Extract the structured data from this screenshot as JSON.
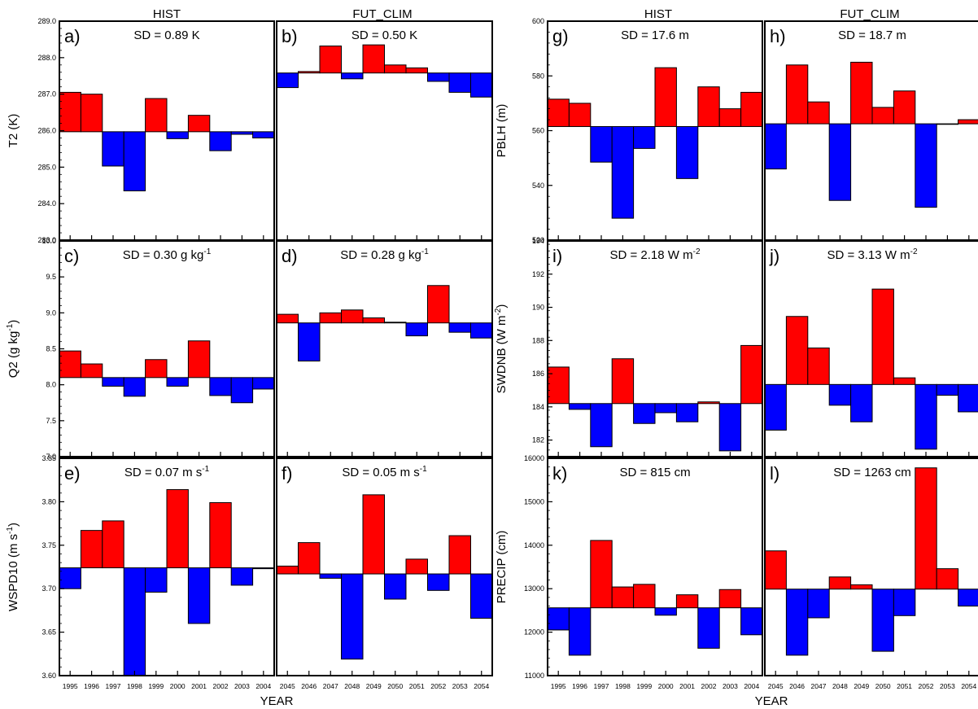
{
  "column_headers": [
    "HIST",
    "FUT_CLIM",
    "HIST",
    "FUT_CLIM"
  ],
  "xlabel": "YEAR",
  "colors": {
    "positive": "#ff0000",
    "negative": "#0000ff",
    "frame": "#000000"
  },
  "chart_data": [
    {
      "type": "bar",
      "panel": "a)",
      "sd_main": "SD = 0.89 K",
      "sd_sup": "",
      "ylabel_main": "T2 (K)",
      "ylabel_sup": "",
      "categories": [
        "1995",
        "1996",
        "1997",
        "1998",
        "1999",
        "2000",
        "2001",
        "2002",
        "2003",
        "2004"
      ],
      "baseline": 285.97,
      "values": [
        287.05,
        287.0,
        285.03,
        284.35,
        286.88,
        285.78,
        286.42,
        285.45,
        285.9,
        285.8
      ],
      "ylim": [
        283.0,
        289.0
      ],
      "yticks": [
        283.0,
        284.0,
        285.0,
        286.0,
        287.0,
        288.0,
        289.0
      ],
      "ytick_labels": [
        "283.0",
        "284.0",
        "285.0",
        "286.0",
        "287.0",
        "288.0",
        "289.0"
      ],
      "show_xticks": false
    },
    {
      "type": "bar",
      "panel": "b)",
      "sd_main": "SD = 0.50 K",
      "sd_sup": "",
      "ylabel_main": "",
      "ylabel_sup": "",
      "categories": [
        "2045",
        "2046",
        "2047",
        "2048",
        "2049",
        "2050",
        "2051",
        "2052",
        "2053",
        "2054"
      ],
      "baseline": 287.58,
      "values": [
        287.18,
        287.62,
        288.32,
        287.42,
        288.35,
        287.8,
        287.72,
        287.35,
        287.05,
        286.92
      ],
      "ylim": [
        283.0,
        289.0
      ],
      "yticks": [],
      "ytick_labels": [],
      "show_xticks": false
    },
    {
      "type": "bar",
      "panel": "c)",
      "sd_main": "SD = 0.30 g kg",
      "sd_sup": "-1",
      "ylabel_main": "Q2 (g kg",
      "ylabel_sup": "-1",
      "categories": [
        "1995",
        "1996",
        "1997",
        "1998",
        "1999",
        "2000",
        "2001",
        "2002",
        "2003",
        "2004"
      ],
      "baseline": 8.1,
      "values": [
        8.47,
        8.29,
        7.98,
        7.84,
        8.35,
        7.98,
        8.61,
        7.85,
        7.75,
        7.94
      ],
      "ylim": [
        7.0,
        10.0
      ],
      "yticks": [
        7.0,
        7.5,
        8.0,
        8.5,
        9.0,
        9.5,
        10.0
      ],
      "ytick_labels": [
        "7.0",
        "7.5",
        "8.0",
        "8.5",
        "9.0",
        "9.5",
        "10.0"
      ],
      "show_xticks": false
    },
    {
      "type": "bar",
      "panel": "d)",
      "sd_main": "SD = 0.28 g kg",
      "sd_sup": "-1",
      "ylabel_main": "",
      "ylabel_sup": "",
      "categories": [
        "2045",
        "2046",
        "2047",
        "2048",
        "2049",
        "2050",
        "2051",
        "2052",
        "2053",
        "2054"
      ],
      "baseline": 8.86,
      "values": [
        8.98,
        8.33,
        9.0,
        9.04,
        8.93,
        8.87,
        8.68,
        9.38,
        8.73,
        8.65
      ],
      "ylim": [
        7.0,
        10.0
      ],
      "yticks": [],
      "ytick_labels": [],
      "show_xticks": false
    },
    {
      "type": "bar",
      "panel": "e)",
      "sd_main": "SD = 0.07 m s",
      "sd_sup": "-1",
      "ylabel_main": "WSPD10 (m s",
      "ylabel_sup": "-1",
      "categories": [
        "1995",
        "1996",
        "1997",
        "1998",
        "1999",
        "2000",
        "2001",
        "2002",
        "2003",
        "2004"
      ],
      "baseline": 3.724,
      "values": [
        3.7,
        3.767,
        3.778,
        3.6,
        3.696,
        3.814,
        3.66,
        3.799,
        3.704,
        3.723
      ],
      "ylim": [
        3.6,
        3.85
      ],
      "yticks": [
        3.6,
        3.65,
        3.7,
        3.75,
        3.8,
        3.85
      ],
      "ytick_labels": [
        "3.60",
        "3.65",
        "3.70",
        "3.75",
        "3.80",
        "3.85"
      ],
      "show_xticks": true
    },
    {
      "type": "bar",
      "panel": "f)",
      "sd_main": "SD = 0.05 m s",
      "sd_sup": "-1",
      "ylabel_main": "",
      "ylabel_sup": "",
      "categories": [
        "2045",
        "2046",
        "2047",
        "2048",
        "2049",
        "2050",
        "2051",
        "2052",
        "2053",
        "2054"
      ],
      "baseline": 3.717,
      "values": [
        3.726,
        3.753,
        3.712,
        3.619,
        3.808,
        3.688,
        3.734,
        3.698,
        3.761,
        3.666
      ],
      "ylim": [
        3.6,
        3.85
      ],
      "yticks": [],
      "ytick_labels": [],
      "show_xticks": true
    },
    {
      "type": "bar",
      "panel": "g)",
      "sd_main": "SD = 17.6 m",
      "sd_sup": "",
      "ylabel_main": "PBLH (m)",
      "ylabel_sup": "",
      "categories": [
        "1995",
        "1996",
        "1997",
        "1998",
        "1999",
        "2000",
        "2001",
        "2002",
        "2003",
        "2004"
      ],
      "baseline": 561.5,
      "values": [
        571.5,
        570.0,
        548.5,
        528.0,
        553.5,
        583.0,
        542.5,
        576.0,
        568.0,
        574.0
      ],
      "ylim": [
        520,
        600
      ],
      "yticks": [
        520,
        540,
        560,
        580,
        600
      ],
      "ytick_labels": [
        "520",
        "540",
        "560",
        "580",
        "600"
      ],
      "show_xticks": false
    },
    {
      "type": "bar",
      "panel": "h)",
      "sd_main": "SD = 18.7 m",
      "sd_sup": "",
      "ylabel_main": "",
      "ylabel_sup": "",
      "categories": [
        "2045",
        "2046",
        "2047",
        "2048",
        "2049",
        "2050",
        "2051",
        "2052",
        "2053",
        "2054"
      ],
      "baseline": 562.5,
      "values": [
        546.0,
        584.0,
        570.5,
        534.5,
        585.0,
        568.5,
        574.5,
        532.0,
        562.3,
        564.0
      ],
      "ylim": [
        520,
        600
      ],
      "yticks": [],
      "ytick_labels": [],
      "show_xticks": false
    },
    {
      "type": "bar",
      "panel": "i)",
      "sd_main": "SD = 2.18 W m",
      "sd_sup": "-2",
      "ylabel_main": "SWDNB (W m",
      "ylabel_sup": "-2",
      "categories": [
        "1995",
        "1996",
        "1997",
        "1998",
        "1999",
        "2000",
        "2001",
        "2002",
        "2003",
        "2004"
      ],
      "baseline": 184.2,
      "values": [
        186.4,
        183.85,
        181.6,
        186.9,
        183.0,
        183.65,
        183.1,
        184.3,
        181.35,
        187.7
      ],
      "ylim": [
        181.0,
        194.0
      ],
      "yticks": [
        182,
        184,
        186,
        188,
        190,
        192,
        194
      ],
      "ytick_labels": [
        "182",
        "184",
        "186",
        "188",
        "190",
        "192",
        "194"
      ],
      "show_xticks": false
    },
    {
      "type": "bar",
      "panel": "j)",
      "sd_main": "SD = 3.13 W m",
      "sd_sup": "-2",
      "ylabel_main": "",
      "ylabel_sup": "",
      "categories": [
        "2045",
        "2046",
        "2047",
        "2048",
        "2049",
        "2050",
        "2051",
        "2052",
        "2053",
        "2054"
      ],
      "baseline": 185.35,
      "values": [
        182.6,
        189.45,
        187.55,
        184.1,
        183.1,
        191.1,
        185.75,
        181.45,
        184.7,
        183.7
      ],
      "ylim": [
        181.0,
        194.0
      ],
      "yticks": [],
      "ytick_labels": [],
      "show_xticks": false
    },
    {
      "type": "bar",
      "panel": "k)",
      "sd_main": "SD = 815 cm",
      "sd_sup": "",
      "ylabel_main": "PRECIP (cm)",
      "ylabel_sup": "",
      "categories": [
        "1995",
        "1996",
        "1997",
        "1998",
        "1999",
        "2000",
        "2001",
        "2002",
        "2003",
        "2004"
      ],
      "baseline": 12560,
      "values": [
        12050,
        11470,
        14110,
        13040,
        13100,
        12390,
        12860,
        11630,
        12980,
        11940
      ],
      "ylim": [
        11000,
        16000
      ],
      "yticks": [
        11000,
        12000,
        13000,
        14000,
        15000,
        16000
      ],
      "ytick_labels": [
        "11000",
        "12000",
        "13000",
        "14000",
        "15000",
        "16000"
      ],
      "show_xticks": true
    },
    {
      "type": "bar",
      "panel": "l)",
      "sd_main": "SD = 1263 cm",
      "sd_sup": "",
      "ylabel_main": "",
      "ylabel_sup": "",
      "categories": [
        "2045",
        "2046",
        "2047",
        "2048",
        "2049",
        "2050",
        "2051",
        "2052",
        "2053",
        "2054"
      ],
      "baseline": 12990,
      "values": [
        13870,
        11470,
        12330,
        13270,
        13090,
        11560,
        12380,
        15780,
        13460,
        12600
      ],
      "ylim": [
        11000,
        16000
      ],
      "yticks": [],
      "ytick_labels": [],
      "show_xticks": true
    }
  ]
}
